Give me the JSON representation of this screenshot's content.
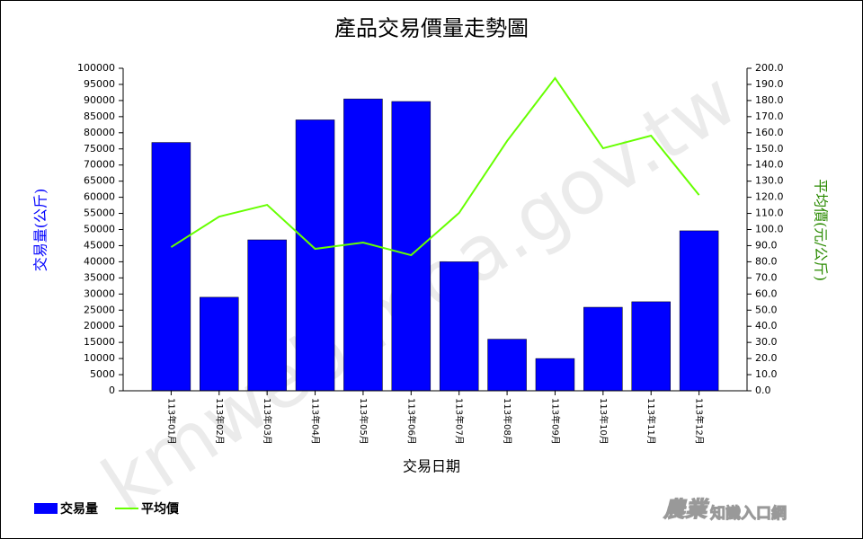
{
  "chart_data": {
    "type": "bar",
    "title": "產品交易價量走勢圖",
    "x_label": "交易日期",
    "y_label": "交易量(公斤)",
    "y2_label": "平均價(元/公斤)",
    "categories": [
      "113年01月",
      "113年02月",
      "113年03月",
      "113年04月",
      "113年05月",
      "113年06月",
      "113年07月",
      "113年08月",
      "113年09月",
      "113年10月",
      "113年11月",
      "113年12月"
    ],
    "series": [
      {
        "name": "交易量",
        "type": "bar",
        "color": "#0000ff",
        "values": [
          77000,
          29000,
          46800,
          84000,
          90500,
          89700,
          40000,
          16000,
          10000,
          25900,
          27600,
          49600
        ]
      },
      {
        "name": "平均價",
        "type": "line",
        "axis": "y2",
        "color": "#66ff00",
        "values": [
          89.1,
          108,
          115.3,
          88,
          91.9,
          84.1,
          110.3,
          154.9,
          193.9,
          150.4,
          158.2,
          121.4
        ]
      }
    ],
    "ylim": [
      0,
      100000
    ],
    "yticks": [
      0,
      5000,
      10000,
      15000,
      20000,
      25000,
      30000,
      35000,
      40000,
      45000,
      50000,
      55000,
      60000,
      65000,
      70000,
      75000,
      80000,
      85000,
      90000,
      95000,
      100000
    ],
    "y2lim": [
      0,
      200
    ],
    "y2ticks": [
      {
        "value": 0,
        "label": "0.0"
      },
      {
        "value": 10,
        "label": "10.0"
      },
      {
        "value": 20,
        "label": "20.0"
      },
      {
        "value": 30,
        "label": "30.0"
      },
      {
        "value": 40,
        "label": "40.0"
      },
      {
        "value": 50,
        "label": "50.0"
      },
      {
        "value": 60,
        "label": "60.0"
      },
      {
        "value": 70,
        "label": "70.0"
      },
      {
        "value": 80,
        "label": "80.0"
      },
      {
        "value": 90,
        "label": "90.0"
      },
      {
        "value": 100,
        "label": "100.0"
      },
      {
        "value": 110,
        "label": "110.0"
      },
      {
        "value": 120,
        "label": "120.0"
      },
      {
        "value": 130,
        "label": "130.0"
      },
      {
        "value": 140,
        "label": "140.0"
      },
      {
        "value": 150,
        "label": "150.0"
      },
      {
        "value": 160,
        "label": "160.0"
      },
      {
        "value": 170,
        "label": "170.0"
      },
      {
        "value": 180,
        "label": "180.0"
      },
      {
        "value": 190,
        "label": "190.0"
      },
      {
        "value": 200,
        "label": "200.0"
      }
    ],
    "legend": "bottom-left"
  },
  "watermark": "kmweb.moa.gov.tw",
  "logo": {
    "main": "農業",
    "sub": "知識入口網"
  }
}
